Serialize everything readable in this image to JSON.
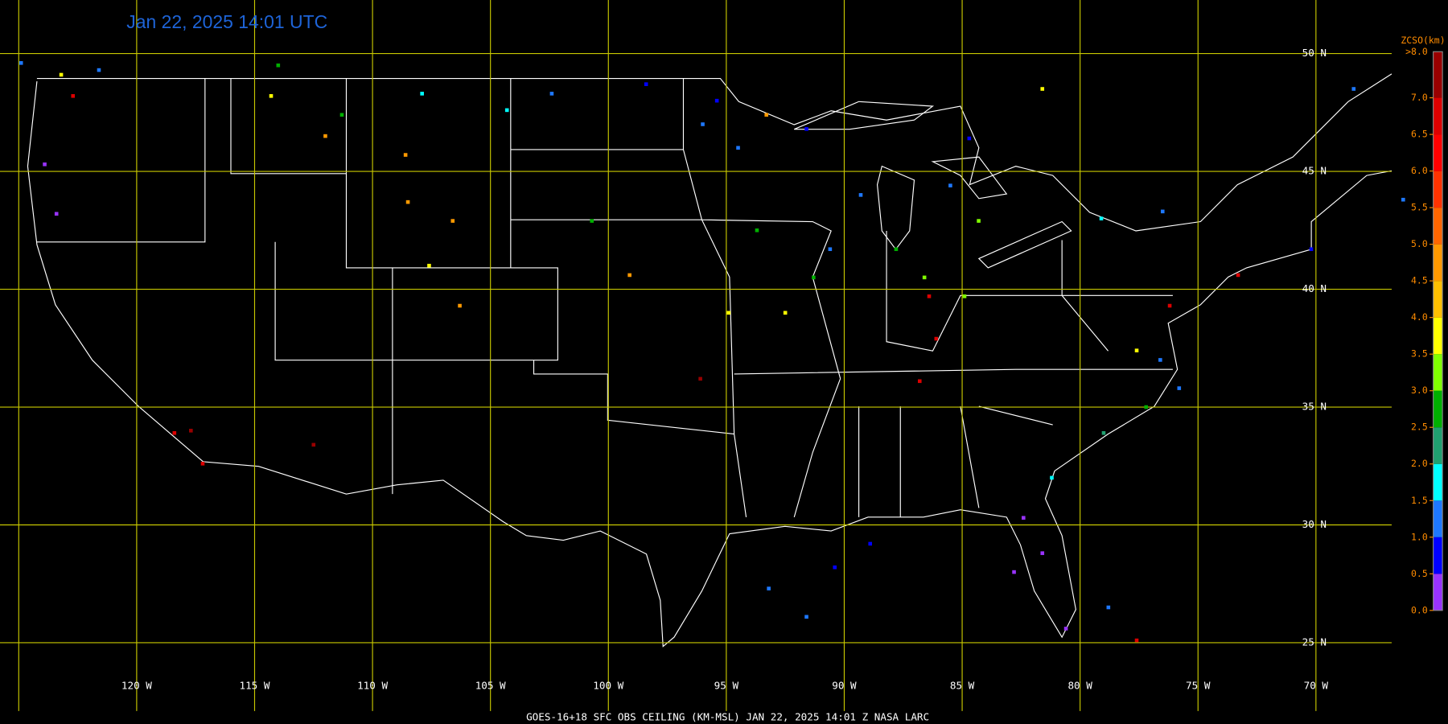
{
  "map": {
    "title": "Jan 22, 2025 14:01 UTC",
    "footer": "GOES-16+18  SFC OBS CEILING (KM-MSL)   JAN 22, 2025 14:01 Z   NASA LARC",
    "lat_ticks": [
      {
        "value": 50,
        "label": "50 N"
      },
      {
        "value": 45,
        "label": "45 N"
      },
      {
        "value": 40,
        "label": "40 N"
      },
      {
        "value": 35,
        "label": "35 N"
      },
      {
        "value": 30,
        "label": "30 N"
      },
      {
        "value": 25,
        "label": "25 N"
      }
    ],
    "lon_ticks": [
      {
        "value": -125,
        "label": null
      },
      {
        "value": -120,
        "label": "120 W"
      },
      {
        "value": -115,
        "label": "115 W"
      },
      {
        "value": -110,
        "label": "110 W"
      },
      {
        "value": -105,
        "label": "105 W"
      },
      {
        "value": -100,
        "label": "100 W"
      },
      {
        "value": -95,
        "label": "95 W"
      },
      {
        "value": -90,
        "label": "90 W"
      },
      {
        "value": -85,
        "label": "85 W"
      },
      {
        "value": -80,
        "label": "80 W"
      },
      {
        "value": -75,
        "label": "75 W"
      },
      {
        "value": -70,
        "label": "70 W"
      }
    ],
    "grid_color": "#c8c800",
    "colorbar": {
      "title": "ZCSO(km)",
      "over_label": ">8.0",
      "bins": [
        0,
        0.5,
        1.0,
        1.5,
        2.0,
        2.5,
        3.0,
        3.5,
        4.0,
        4.5,
        5.0,
        5.5,
        6.0,
        6.5,
        7.0
      ],
      "colors": [
        "#9933ff",
        "#0000ff",
        "#1e78ff",
        "#00ffff",
        "#20a070",
        "#00b000",
        "#80ff00",
        "#ffff00",
        "#ffc000",
        "#ff9900",
        "#ff6600",
        "#ff3300",
        "#ff0000",
        "#dd0000"
      ],
      "over_color": "#990000",
      "ticks": [
        {
          "value": 0,
          "label": "0.0"
        },
        {
          "value": 0.5,
          "label": "0.5"
        },
        {
          "value": 1,
          "label": "1.0"
        },
        {
          "value": 1.5,
          "label": "1.5"
        },
        {
          "value": 2,
          "label": "2.0"
        },
        {
          "value": 2.5,
          "label": "2.5"
        },
        {
          "value": 3,
          "label": "3.0"
        },
        {
          "value": 3.5,
          "label": "3.5"
        },
        {
          "value": 4,
          "label": "4.0"
        },
        {
          "value": 4.5,
          "label": "4.5"
        },
        {
          "value": 5,
          "label": "5.0"
        },
        {
          "value": 5.5,
          "label": "5.5"
        },
        {
          "value": 6,
          "label": "6.0"
        },
        {
          "value": 6.5,
          "label": "6.5"
        },
        {
          "value": 7,
          "label": "7.0"
        }
      ]
    },
    "stations": {
      "lon": [
        -124.9,
        -123.2,
        -122.7,
        -121.6,
        -123.9,
        -123.4,
        -114.3,
        -114.0,
        -112.0,
        -111.3,
        -108.6,
        -107.9,
        -108.5,
        -107.6,
        -106.3,
        -106.6,
        -104.3,
        -102.4,
        -100.7,
        -99.1,
        -98.4,
        -96.0,
        -94.5,
        -93.3,
        -95.4,
        -93.7,
        -94.9,
        -96.1,
        -92.5,
        -91.3,
        -90.6,
        -87.8,
        -86.6,
        -86.4,
        -86.1,
        -86.8,
        -84.9,
        -84.3,
        -85.5,
        -84.7,
        -81.6,
        -89.3,
        -91.6,
        -79.1,
        -76.5,
        -73.3,
        -70.2,
        -76.2,
        -76.6,
        -77.6,
        -77.2,
        -75.8,
        -79.0,
        -81.2,
        -82.4,
        -81.6,
        -82.8,
        -80.6,
        -78.8,
        -77.6,
        -91.6,
        -93.2,
        -90.4,
        -88.9,
        -112.5,
        -117.2,
        -118.4,
        -117.7,
        -66.3,
        -68.4
      ],
      "lat": [
        49.6,
        49.1,
        48.2,
        49.3,
        45.3,
        43.2,
        48.2,
        49.5,
        46.5,
        47.4,
        45.7,
        48.3,
        43.7,
        41.0,
        39.3,
        42.9,
        47.6,
        48.3,
        42.9,
        40.6,
        48.7,
        47.0,
        46.0,
        47.4,
        48.0,
        42.5,
        39.0,
        36.2,
        39.0,
        40.5,
        41.7,
        41.7,
        40.5,
        39.7,
        37.9,
        36.1,
        39.7,
        42.9,
        44.4,
        46.4,
        48.5,
        44.0,
        46.8,
        43.0,
        43.3,
        40.6,
        41.7,
        39.3,
        37.0,
        37.4,
        35.0,
        35.8,
        33.9,
        32.0,
        30.3,
        28.8,
        28.0,
        25.6,
        26.5,
        25.1,
        26.1,
        27.3,
        28.2,
        29.2,
        33.4,
        32.6,
        33.9,
        34.0,
        43.8,
        48.5
      ],
      "ceiling": [
        1.2,
        3.8,
        6.5,
        1.2,
        0.3,
        0.3,
        3.8,
        2.8,
        4.5,
        2.8,
        4.5,
        1.8,
        4.5,
        3.8,
        4.5,
        4.5,
        1.8,
        1.2,
        2.8,
        4.5,
        0.8,
        1.2,
        1.2,
        4.5,
        0.8,
        2.8,
        3.8,
        7.5,
        3.8,
        2.8,
        1.2,
        2.8,
        3.2,
        6.5,
        6.5,
        6.5,
        3.2,
        3.2,
        1.2,
        0.8,
        3.8,
        1.2,
        0.8,
        1.8,
        1.2,
        6.5,
        0.8,
        6.5,
        1.2,
        3.8,
        2.8,
        1.2,
        2.2,
        1.8,
        0.3,
        0.3,
        0.3,
        0.3,
        1.2,
        6.5,
        1.2,
        1.2,
        0.8,
        0.8,
        7.5,
        6.5,
        6.5,
        7.5,
        1.2,
        1.2
      ]
    }
  }
}
